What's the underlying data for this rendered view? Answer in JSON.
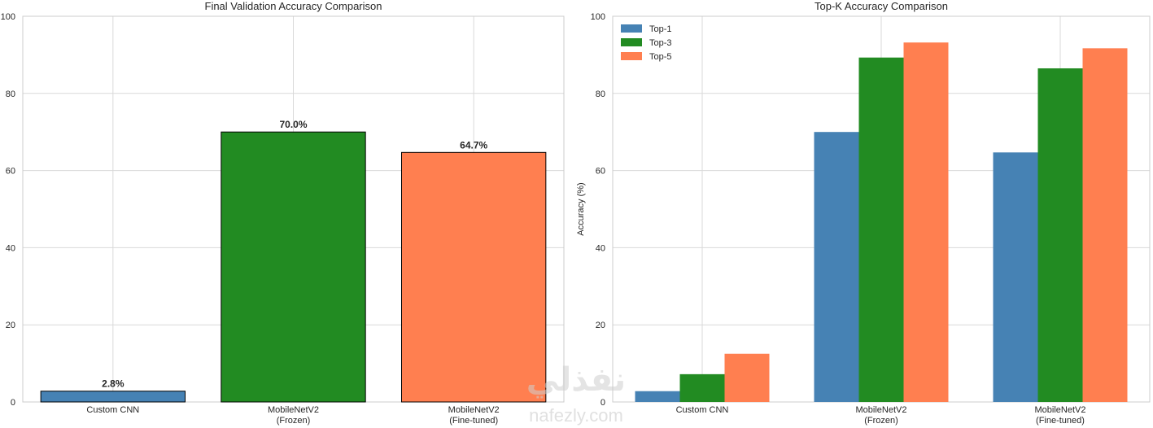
{
  "watermark": {
    "arabic": "نفذلي",
    "latin": "nafezly.com"
  },
  "chart_data": [
    {
      "type": "bar",
      "title": "Final Validation Accuracy Comparison",
      "xlabel": "",
      "ylabel": "",
      "categories": [
        [
          "Custom CNN"
        ],
        [
          "MobileNetV2",
          "(Frozen)"
        ],
        [
          "MobileNetV2",
          "(Fine-tuned)"
        ]
      ],
      "values": [
        2.8,
        70.0,
        64.7
      ],
      "value_labels": [
        "2.8%",
        "70.0%",
        "64.7%"
      ],
      "colors": [
        "#4682B4",
        "#228B22",
        "#FF7F50"
      ],
      "ylim": [
        0,
        100
      ],
      "yticks": [
        0,
        20,
        40,
        60,
        80,
        100
      ],
      "grid": true
    },
    {
      "type": "bar",
      "title": "Top-K Accuracy Comparison",
      "xlabel": "",
      "ylabel": "Accuracy (%)",
      "categories": [
        [
          "Custom CNN"
        ],
        [
          "MobileNetV2",
          "(Frozen)"
        ],
        [
          "MobileNetV2",
          "(Fine-tuned)"
        ]
      ],
      "series": [
        {
          "name": "Top-1",
          "values": [
            2.8,
            70.0,
            64.7
          ],
          "color": "#4682B4"
        },
        {
          "name": "Top-3",
          "values": [
            7.2,
            89.3,
            86.5
          ],
          "color": "#228B22"
        },
        {
          "name": "Top-5",
          "values": [
            12.5,
            93.2,
            91.7
          ],
          "color": "#FF7F50"
        }
      ],
      "ylim": [
        0,
        100
      ],
      "yticks": [
        0,
        20,
        40,
        60,
        80,
        100
      ],
      "legend": "top-left",
      "grid": true
    }
  ]
}
